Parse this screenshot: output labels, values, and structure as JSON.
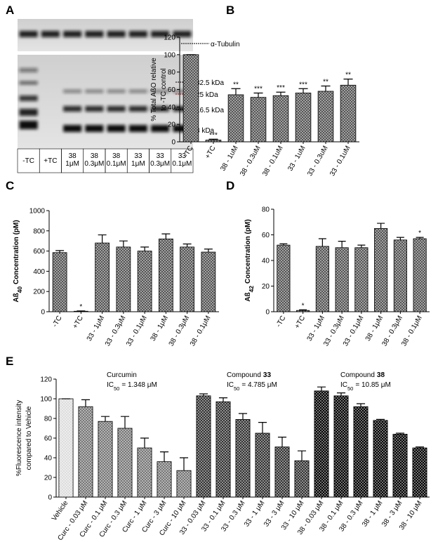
{
  "blot": {
    "panel": "A",
    "tubulin_label": "α-Tubulin",
    "markers": [
      "32.5 kDa",
      "25 kDa",
      "16.5 kDa",
      "8 kDa"
    ],
    "lanes": [
      [
        "-TC"
      ],
      [
        "+TC"
      ],
      [
        "38",
        "1μM"
      ],
      [
        "38",
        "0.3μM"
      ],
      [
        "38",
        "0.1μM"
      ],
      [
        "33",
        "1μM"
      ],
      [
        "33",
        "0.3μM"
      ],
      [
        "33",
        "0.1μM"
      ]
    ]
  },
  "chart_data": [
    {
      "type": "bar",
      "panel": "B",
      "y_label": [
        "% Total AßO relative",
        "to -TC control"
      ],
      "categories": [
        "-TC",
        "+TC",
        "38 - 1uM",
        "38 - 0.3uM",
        "38 - 0.1uM",
        "33 - 1uM",
        "33 - 0.3uM",
        "33 - 0.1uM"
      ],
      "values": [
        100,
        2,
        54,
        51,
        53,
        56,
        58,
        65
      ],
      "errors": [
        0,
        1,
        7,
        5,
        4,
        5,
        6,
        7
      ],
      "significance": [
        null,
        "***",
        "**",
        "***",
        "***",
        "***",
        "**",
        "**"
      ],
      "color": "#555555",
      "ylim": [
        0,
        120
      ],
      "yticks": [
        0,
        20,
        40,
        60,
        80,
        100,
        120
      ]
    },
    {
      "type": "bar",
      "panel": "C",
      "y_label": {
        "prefix": "Aß",
        "sub": "40",
        "suffix": "Concentration (pM)"
      },
      "categories": [
        "-TC",
        "+TC",
        "33 - 1μM",
        "33 - 0.3μM",
        "33 - 0.1μM",
        "38 - 1μM",
        "38 - 0.3μM",
        "38 - 0.1μM"
      ],
      "values": [
        585,
        5,
        680,
        640,
        600,
        720,
        640,
        590
      ],
      "errors": [
        20,
        3,
        80,
        60,
        40,
        50,
        30,
        30
      ],
      "significance": [
        null,
        "*",
        null,
        null,
        null,
        null,
        null,
        null
      ],
      "color": "#555555",
      "ylim": [
        0,
        1000
      ],
      "yticks": [
        0,
        200,
        400,
        600,
        800,
        1000
      ]
    },
    {
      "type": "bar",
      "panel": "D",
      "y_label": {
        "prefix": "Aß",
        "sub": "42",
        "suffix": "Concentration (pM)"
      },
      "categories": [
        "-TC",
        "+TC",
        "33 - 1μM",
        "33 - 0.3μM",
        "33 - 0.1μM",
        "38 - 1μM",
        "38 - 0.3μM",
        "38 - 0.1μM"
      ],
      "values": [
        52,
        1,
        51,
        50,
        50,
        65,
        56,
        57
      ],
      "errors": [
        1,
        0.5,
        6,
        5,
        2,
        4,
        2,
        1
      ],
      "significance": [
        null,
        "*",
        null,
        null,
        null,
        null,
        null,
        "*"
      ],
      "color": "#555555",
      "ylim": [
        0,
        80
      ],
      "yticks": [
        0,
        20,
        40,
        60,
        80
      ]
    },
    {
      "type": "bar",
      "panel": "E",
      "y_label": [
        "%Fluorescence intensity",
        "compared to Vehicle"
      ],
      "categories": [
        "Vehicle",
        "Curc - 0.03 μM",
        "Curc - 0.1 μM",
        "Curc - 0.3 μM",
        "Curc - 1 μM",
        "Curc - 3 μM",
        "Curc - 10 μM",
        "33 - 0.03 μM",
        "33 - 0.1 μM",
        "33 - 0.3 μM",
        "33 - 1 μM",
        "33 - 3 μM",
        "33 - 10 μM",
        "38 - 0.03 μM",
        "38 - 0.1 μM",
        "38 - 0.3 μM",
        "38 - 1 μM",
        "38 - 3 μM",
        "38 - 10 μM"
      ],
      "values": [
        100,
        92,
        77,
        70,
        50,
        36,
        27,
        103,
        97,
        79,
        65,
        51,
        37,
        108,
        103,
        92,
        78,
        64,
        50
      ],
      "errors": [
        0,
        7,
        5,
        12,
        10,
        10,
        13,
        2,
        4,
        6,
        11,
        10,
        10,
        4,
        3,
        3,
        1,
        1,
        1
      ],
      "colors": [
        "#dddddd",
        "#777777",
        "#777777",
        "#777777",
        "#777777",
        "#777777",
        "#777777",
        "#333333",
        "#333333",
        "#333333",
        "#333333",
        "#333333",
        "#333333",
        "#000000",
        "#000000",
        "#000000",
        "#000000",
        "#000000",
        "#000000"
      ],
      "annotations": [
        {
          "label": "Curcumin",
          "ic": {
            "prefix": "IC",
            "sub": "50",
            "suffix": "= 1.348 μM"
          }
        },
        {
          "label": "Compound",
          "bold": "33",
          "ic": {
            "prefix": "IC",
            "sub": "50",
            "suffix": "= 4.785 μM"
          }
        },
        {
          "label": "Compound",
          "bold": "38",
          "ic": {
            "prefix": "IC",
            "sub": "50",
            "suffix": "= 10.85 μM"
          }
        }
      ],
      "ylim": [
        0,
        120
      ],
      "yticks": [
        0,
        20,
        40,
        60,
        80,
        100,
        120
      ]
    }
  ]
}
